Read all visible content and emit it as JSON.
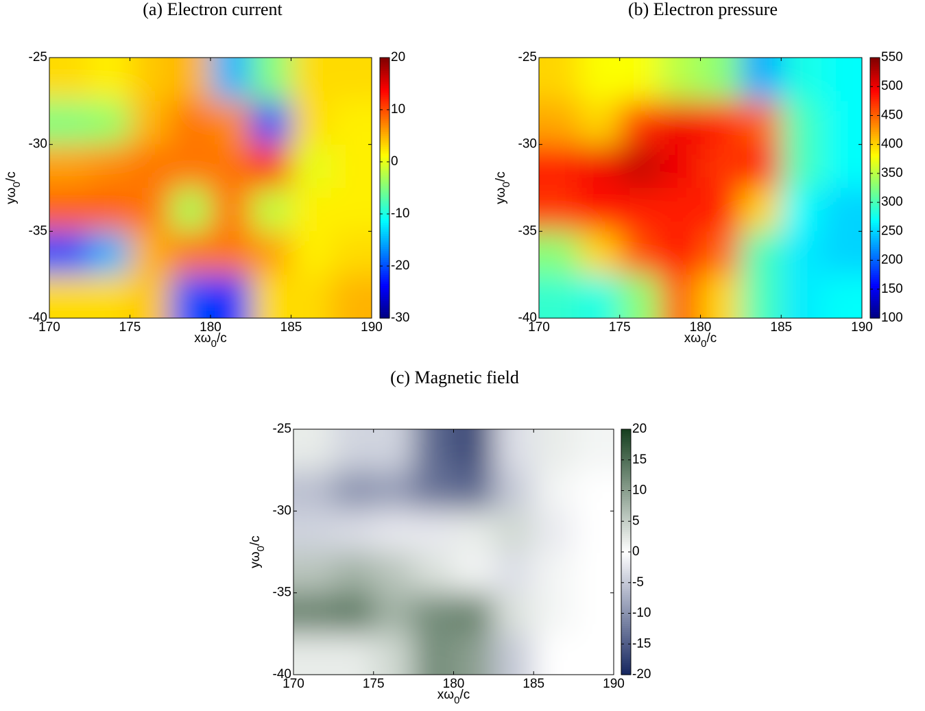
{
  "chart_data": [
    {
      "type": "heatmap",
      "title": "(a) Electron current",
      "x_label": [
        "xω",
        "0",
        "/c"
      ],
      "y_label": [
        "yω",
        "0",
        "/c"
      ],
      "x": [
        171.25,
        173.75,
        176.25,
        178.75,
        181.25,
        183.75,
        186.25,
        188.75
      ],
      "y": [
        -26.25,
        -28.75,
        -31.25,
        -33.75,
        -36.25,
        -38.75
      ],
      "z": [
        [
          3,
          2,
          4,
          5,
          -15,
          -5,
          3,
          3
        ],
        [
          -5,
          -4,
          5,
          8,
          7,
          -20,
          3,
          2
        ],
        [
          6,
          7,
          8,
          8,
          8,
          12,
          0,
          2
        ],
        [
          9,
          9,
          8,
          -3,
          8,
          -2,
          2,
          2
        ],
        [
          -20,
          -15,
          5,
          8,
          8,
          6,
          2,
          3
        ],
        [
          3,
          3,
          4,
          -20,
          -22,
          3,
          3,
          5
        ]
      ],
      "xlim": [
        170,
        190
      ],
      "ylim": [
        -40,
        -25
      ],
      "xticks": [
        170,
        175,
        180,
        185,
        190
      ],
      "yticks": [
        -25,
        -30,
        -35,
        -40
      ],
      "clim": [
        -30,
        20
      ],
      "cticks": [
        20,
        10,
        0,
        -10,
        -20,
        -30
      ],
      "colormap": "jet"
    },
    {
      "type": "heatmap",
      "title": "(b) Electron pressure",
      "x_label": [
        "xω",
        "0",
        "/c"
      ],
      "y_label": [
        "yω",
        "0",
        "/c"
      ],
      "x": [
        171.25,
        173.75,
        176.25,
        178.75,
        181.25,
        183.75,
        186.25,
        188.75
      ],
      "y": [
        -26.25,
        -28.75,
        -31.25,
        -33.75,
        -36.25,
        -38.75
      ],
      "z": [
        [
          400,
          380,
          380,
          350,
          330,
          230,
          280,
          270
        ],
        [
          420,
          400,
          470,
          500,
          480,
          450,
          300,
          270
        ],
        [
          480,
          500,
          520,
          500,
          470,
          480,
          300,
          270
        ],
        [
          470,
          490,
          480,
          480,
          480,
          400,
          270,
          250
        ],
        [
          330,
          400,
          460,
          490,
          450,
          300,
          260,
          250
        ],
        [
          290,
          280,
          330,
          450,
          400,
          300,
          260,
          270
        ]
      ],
      "xlim": [
        170,
        190
      ],
      "ylim": [
        -40,
        -25
      ],
      "xticks": [
        170,
        175,
        180,
        185,
        190
      ],
      "yticks": [
        -25,
        -30,
        -35,
        -40
      ],
      "clim": [
        100,
        550
      ],
      "cticks": [
        550,
        500,
        450,
        400,
        350,
        300,
        250,
        200,
        150,
        100
      ],
      "colormap": "jet"
    },
    {
      "type": "heatmap",
      "title": "(c) Magnetic field",
      "x_label": [
        "xω",
        "0",
        "/c"
      ],
      "y_label": [
        "yω",
        "0",
        "/c"
      ],
      "x": [
        171.25,
        173.75,
        176.25,
        178.75,
        181.25,
        183.75,
        186.25,
        188.75
      ],
      "y": [
        -26.25,
        -28.75,
        -31.25,
        -33.75,
        -36.25,
        -38.75
      ],
      "z": [
        [
          2,
          -4,
          -4,
          -14,
          -17,
          -3,
          2,
          1
        ],
        [
          -6,
          -10,
          -9,
          -13,
          -14,
          -5,
          1,
          0
        ],
        [
          -4,
          -3,
          -2,
          -2,
          2,
          4,
          -2,
          0
        ],
        [
          6,
          8,
          6,
          3,
          1,
          -3,
          1,
          0
        ],
        [
          13,
          14,
          8,
          12,
          13,
          3,
          1,
          0
        ],
        [
          2,
          2,
          4,
          12,
          10,
          -5,
          0,
          0
        ]
      ],
      "xlim": [
        170,
        190
      ],
      "ylim": [
        -40,
        -25
      ],
      "xticks": [
        170,
        175,
        180,
        185,
        190
      ],
      "yticks": [
        -25,
        -30,
        -35,
        -40
      ],
      "clim": [
        -20,
        20
      ],
      "cticks": [
        20,
        15,
        10,
        5,
        0,
        -5,
        -10,
        -15,
        -20
      ],
      "colormap": [
        "#15265f",
        "#ffffff",
        "#163f1f"
      ]
    }
  ]
}
